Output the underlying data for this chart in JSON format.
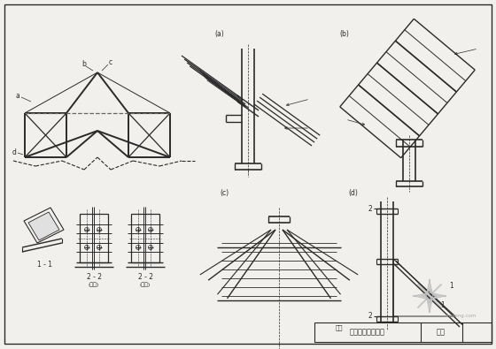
{
  "bg_color": "#f2f0ec",
  "line_color": "#2a2a2a",
  "title_text": "三铰拱式天窗节点",
  "page_text": "图页",
  "tu_ming_text": "图名",
  "fig_width": 5.6,
  "fig_height": 3.95,
  "dpi": 100
}
